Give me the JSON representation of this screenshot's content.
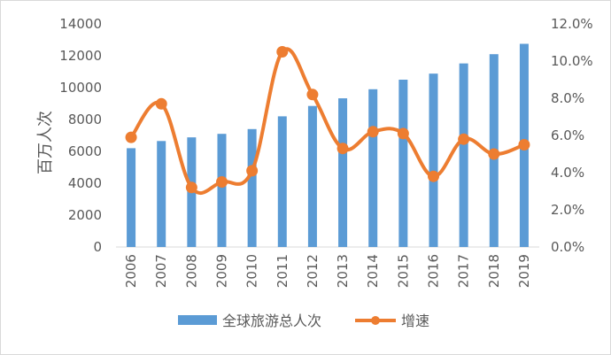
{
  "chart_data": {
    "type": "bar+line",
    "categories": [
      "2006",
      "2007",
      "2008",
      "2009",
      "2010",
      "2011",
      "2012",
      "2013",
      "2014",
      "2015",
      "2016",
      "2017",
      "2018",
      "2019"
    ],
    "series": [
      {
        "name": "全球旅游总人次",
        "type": "bar",
        "axis": "left",
        "color": "#5b9bd5",
        "values": [
          6200,
          6650,
          6880,
          7100,
          7400,
          8200,
          8850,
          9330,
          9900,
          10500,
          10880,
          11520,
          12100,
          12750
        ]
      },
      {
        "name": "增速",
        "type": "line",
        "axis": "right",
        "color": "#ed7d31",
        "values": [
          5.9,
          7.7,
          3.2,
          3.5,
          4.1,
          10.5,
          8.2,
          5.3,
          6.2,
          6.1,
          3.8,
          5.8,
          5.0,
          5.5
        ]
      }
    ],
    "ylabel": "百万人次",
    "ylim": [
      0,
      14000
    ],
    "yticks": [
      "0",
      "2000",
      "4000",
      "6000",
      "8000",
      "10000",
      "12000",
      "14000"
    ],
    "y2lim": [
      0,
      12
    ],
    "y2ticks": [
      "0.0%",
      "2.0%",
      "4.0%",
      "6.0%",
      "8.0%",
      "10.0%",
      "12.0%"
    ],
    "grid": false,
    "legend": "bottom"
  }
}
